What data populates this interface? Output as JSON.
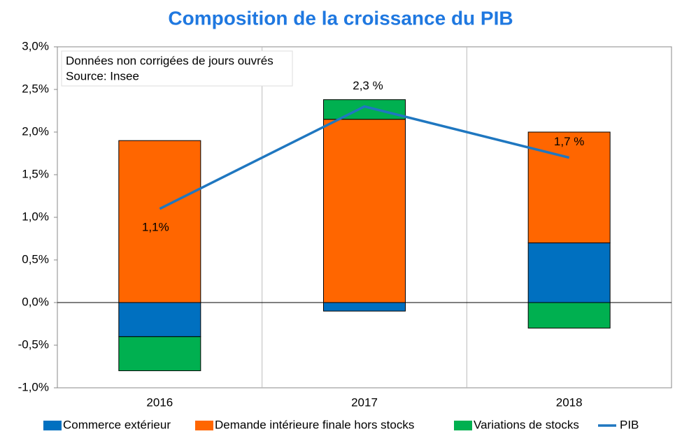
{
  "chart_data": {
    "type": "bar",
    "title": "Composition de la croissance du PIB",
    "title_color": "#1f78e0",
    "annotations": [
      "Données non corrigées de jours ouvrés",
      "Source: Insee"
    ],
    "categories": [
      "2016",
      "2017",
      "2018"
    ],
    "series": [
      {
        "name": "Commerce extérieur",
        "color": "#0070c0",
        "values": [
          -0.4,
          -0.1,
          0.7
        ]
      },
      {
        "name": "Demande intérieure finale hors stocks",
        "color": "#ff6600",
        "values": [
          1.9,
          2.15,
          1.3
        ]
      },
      {
        "name": "Variations de stocks",
        "color": "#00b050",
        "values": [
          -0.4,
          0.23,
          -0.3
        ]
      },
      {
        "name": "PIB",
        "type": "line",
        "color": "#1f77c0",
        "values": [
          1.1,
          2.3,
          1.7
        ],
        "value_labels": [
          "1,1%",
          "2,3 %",
          "1,7 %"
        ]
      }
    ],
    "ylim": [
      -1.0,
      3.0
    ],
    "yticks": [
      {
        "value": -1.0,
        "label": "-1,0%"
      },
      {
        "value": -0.5,
        "label": "-0,5%"
      },
      {
        "value": 0,
        "label": "0,0%"
      },
      {
        "value": 0.5,
        "label": "0,5%"
      },
      {
        "value": 1.0,
        "label": "1,0%"
      },
      {
        "value": 1.5,
        "label": "1,5%"
      },
      {
        "value": 2.0,
        "label": "2,0%"
      },
      {
        "value": 2.5,
        "label": "2,5%"
      },
      {
        "value": 3.0,
        "label": "3,0%"
      }
    ],
    "grid": true,
    "legend": "bottom"
  }
}
